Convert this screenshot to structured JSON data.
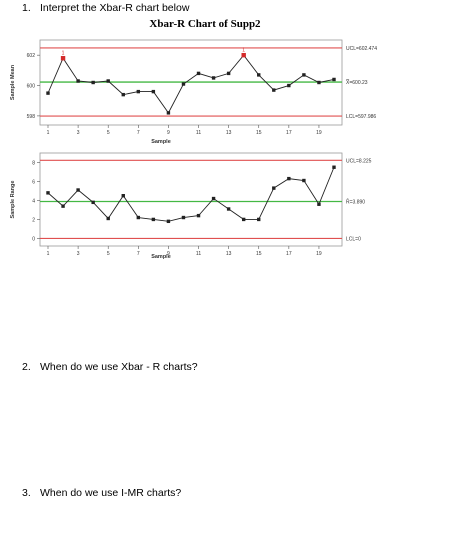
{
  "questions": [
    {
      "number": "1.",
      "text": "Interpret the Xbar-R chart below"
    },
    {
      "number": "2.",
      "text": "When do we use Xbar - R charts?"
    },
    {
      "number": "3.",
      "text": "When do we use I-MR charts?"
    }
  ],
  "chart_title": "Xbar-R Chart of Supp2",
  "chart_data": [
    {
      "type": "line",
      "ylabel": "Sample Mean",
      "xlabel": "Sample",
      "x": [
        1,
        2,
        3,
        4,
        5,
        6,
        7,
        8,
        9,
        10,
        11,
        12,
        13,
        14,
        15,
        16,
        17,
        18,
        19,
        20
      ],
      "values": [
        599.5,
        601.8,
        600.3,
        600.2,
        600.3,
        599.4,
        599.6,
        599.6,
        598.2,
        600.1,
        600.8,
        600.5,
        600.8,
        602.0,
        600.7,
        599.7,
        600.0,
        600.7,
        600.2,
        600.4
      ],
      "out_of_control_points": [
        2,
        14
      ],
      "ucl_label": "UCL=602.474",
      "center_label": "X̿=600.23",
      "lcl_label": "LCL=597.986",
      "ucl": 602.474,
      "center": 600.23,
      "lcl": 597.986,
      "yticks": [
        598,
        600,
        602
      ],
      "xticks": [
        1,
        3,
        5,
        7,
        9,
        11,
        13,
        15,
        17,
        19
      ],
      "ylim": [
        597.4,
        603.0
      ]
    },
    {
      "type": "line",
      "ylabel": "Sample Range",
      "xlabel": "Sample",
      "x": [
        1,
        2,
        3,
        4,
        5,
        6,
        7,
        8,
        9,
        10,
        11,
        12,
        13,
        14,
        15,
        16,
        17,
        18,
        19,
        20
      ],
      "values": [
        4.8,
        3.4,
        5.1,
        3.8,
        2.1,
        4.5,
        2.2,
        2.0,
        1.8,
        2.2,
        2.4,
        4.2,
        3.1,
        2.0,
        2.0,
        5.3,
        6.3,
        6.1,
        3.6,
        7.5
      ],
      "ucl_label": "UCL=8.225",
      "center_label": "R̄=3.890",
      "lcl_label": "LCL=0",
      "ucl": 8.225,
      "center": 3.89,
      "lcl": 0,
      "yticks": [
        0,
        2,
        4,
        6,
        8
      ],
      "xticks": [
        1,
        3,
        5,
        7,
        9,
        11,
        13,
        15,
        17,
        19
      ],
      "ylim": [
        -0.8,
        9.0
      ]
    }
  ],
  "colors": {
    "limit_line": "#e05050",
    "center_line": "#44b844",
    "data_line": "#222222",
    "out_of_control": "#d42a2a",
    "frame": "#999999"
  }
}
